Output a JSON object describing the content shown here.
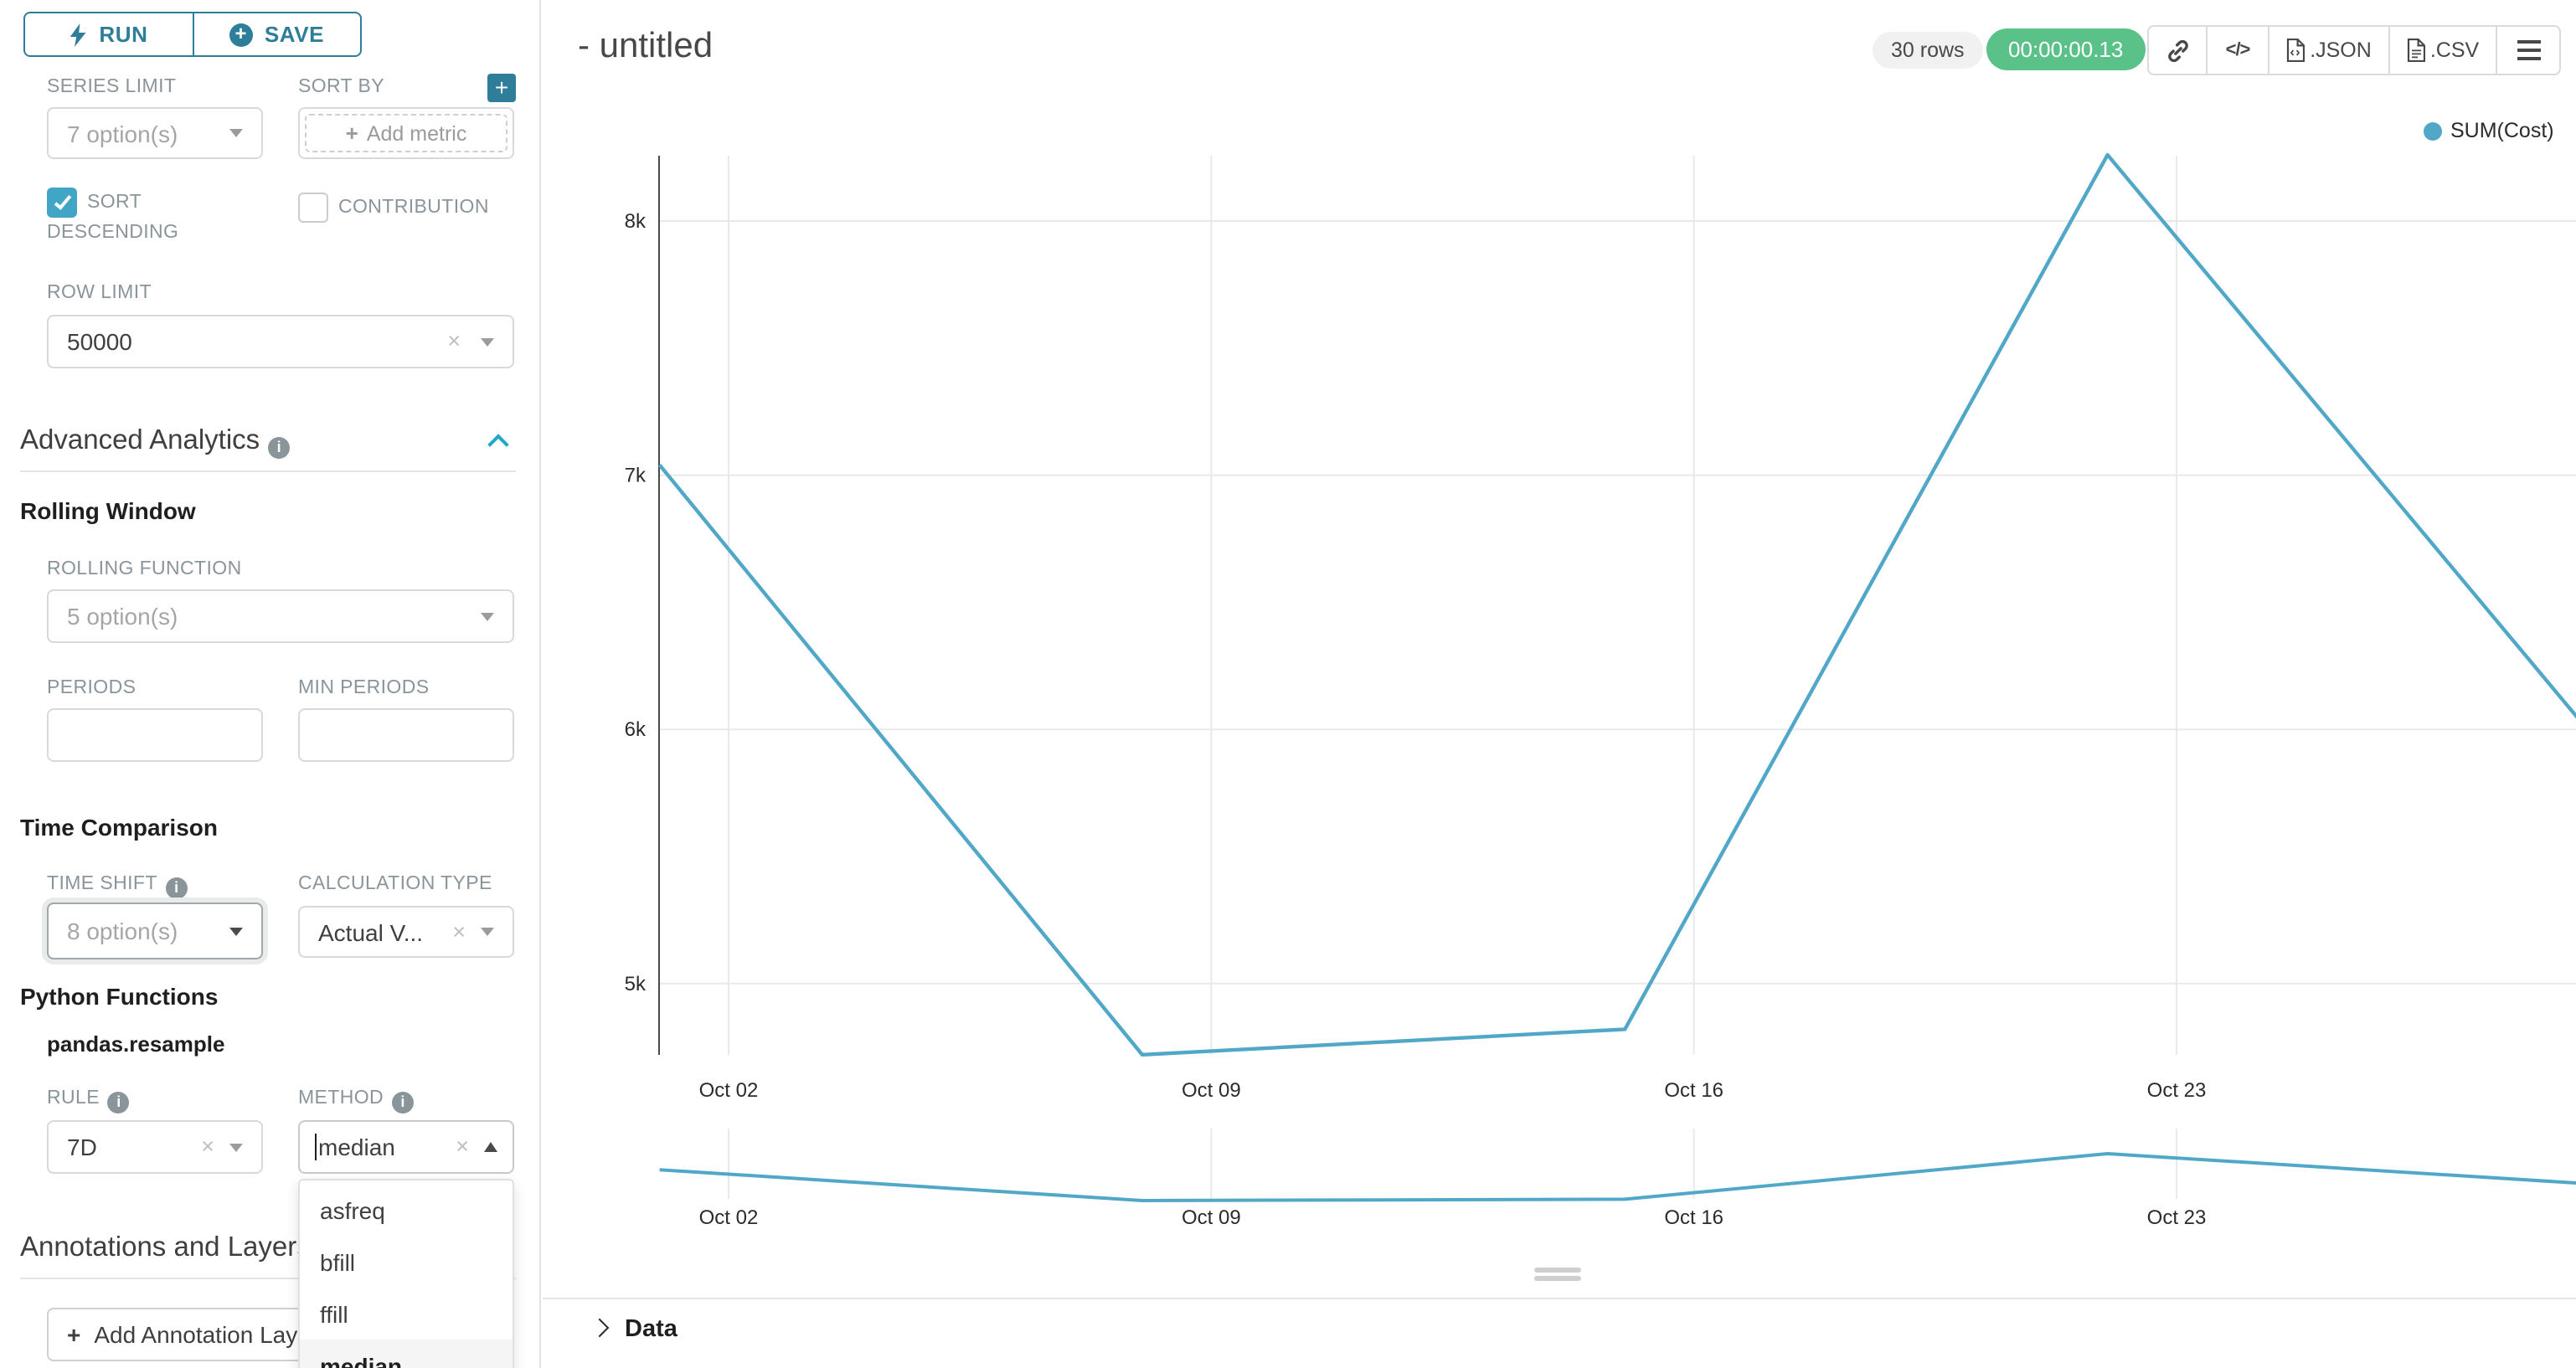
{
  "colors": {
    "accent": "#2E7D99",
    "brand": "#20A7C9",
    "checkbox": "#41A6C6",
    "success": "#5AC189",
    "line": "#51A7C8",
    "label_gray": "#8A949B"
  },
  "toolbar": {
    "run_label": "RUN",
    "save_label": "SAVE"
  },
  "controls": {
    "series_limit": {
      "label": "SERIES LIMIT",
      "value": "7 option(s)"
    },
    "sort_by": {
      "label": "SORT BY",
      "placeholder": "Add metric"
    },
    "sort_descending": {
      "label": "SORT DESCENDING",
      "checked": true
    },
    "contribution": {
      "label": "CONTRIBUTION",
      "checked": false
    },
    "row_limit": {
      "label": "ROW LIMIT",
      "value": "50000"
    },
    "advanced_analytics": {
      "title": "Advanced Analytics"
    },
    "rolling_window": {
      "title": "Rolling Window"
    },
    "rolling_function": {
      "label": "ROLLING FUNCTION",
      "value": "5 option(s)"
    },
    "periods": {
      "label": "PERIODS",
      "value": ""
    },
    "min_periods": {
      "label": "MIN PERIODS",
      "value": ""
    },
    "time_comparison": {
      "title": "Time Comparison"
    },
    "time_shift": {
      "label": "TIME SHIFT",
      "value": "8 option(s)"
    },
    "calculation_type": {
      "label": "CALCULATION TYPE",
      "value": "Actual V..."
    },
    "python_functions": {
      "title": "Python Functions",
      "subtitle": "pandas.resample"
    },
    "rule": {
      "label": "RULE",
      "value": "7D"
    },
    "method": {
      "label": "METHOD",
      "value": "median",
      "options": [
        "asfreq",
        "bfill",
        "ffill",
        "median"
      ],
      "selected": "median"
    },
    "annotations": {
      "title": "Annotations and Layers",
      "add_button_label": "Add Annotation Layer"
    }
  },
  "header": {
    "title": "- untitled",
    "rows_badge": "30 rows",
    "timer_badge": "00:00:00.13",
    "export_json_label": ".JSON",
    "export_csv_label": ".CSV"
  },
  "chart_data": {
    "type": "line",
    "series": [
      {
        "name": "SUM(Cost)",
        "x": [
          "Oct 01",
          "Oct 08",
          "Oct 15",
          "Oct 22",
          "Oct 29"
        ],
        "values": [
          7040,
          4720,
          4820,
          8260,
          5990
        ]
      }
    ],
    "x_tick_labels": [
      "Oct 02",
      "Oct 09",
      "Oct 16",
      "Oct 23"
    ],
    "y_ticks": [
      {
        "label": "8k",
        "value": 8000
      },
      {
        "label": "7k",
        "value": 7000
      },
      {
        "label": "6k",
        "value": 6000
      },
      {
        "label": "5k",
        "value": 5000
      }
    ],
    "legend": [
      "SUM(Cost)"
    ],
    "legend_position": "top-right",
    "grid": true,
    "line_color": "#51A7C8",
    "has_mini_preview": true
  },
  "data_panel": {
    "title": "Data"
  }
}
